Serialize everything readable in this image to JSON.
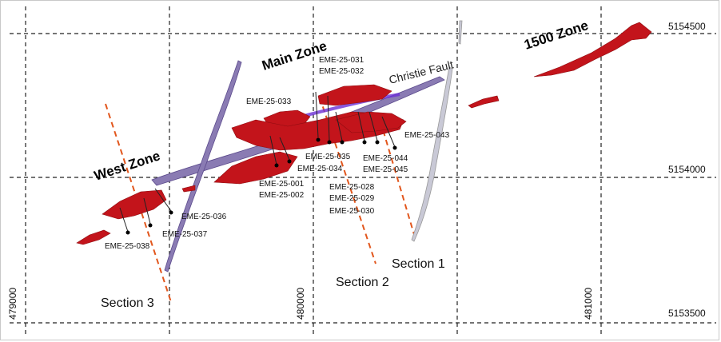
{
  "grid": {
    "eastings": [
      "479000",
      "480000",
      "481000"
    ],
    "northings": [
      "5154500",
      "5154000",
      "5153500"
    ]
  },
  "zones": {
    "main": "Main Zone",
    "west": "West Zone",
    "z1500": "1500 Zone"
  },
  "fault_label": "Christie Fault",
  "sections": {
    "s1": "Section 1",
    "s2": "Section 2",
    "s3": "Section 3"
  },
  "drillholes": {
    "h031": "EME-25-031",
    "h032": "EME-25-032",
    "h033": "EME-25-033",
    "h043": "EME-25-043",
    "h035": "EME-25-035",
    "h034": "EME-25-034",
    "h044": "EME-25-044",
    "h045": "EME-25-045",
    "h001": "EME-25-001",
    "h002": "EME-25-002",
    "h028": "EME-25-028",
    "h029": "EME-25-029",
    "h030": "EME-25-030",
    "h036": "EME-25-036",
    "h037": "EME-25-037",
    "h038": "EME-25-038"
  },
  "colors": {
    "mineralization": "#c3141b",
    "fault_vein": "#8a7bb3",
    "section_line": "#e2561c"
  }
}
